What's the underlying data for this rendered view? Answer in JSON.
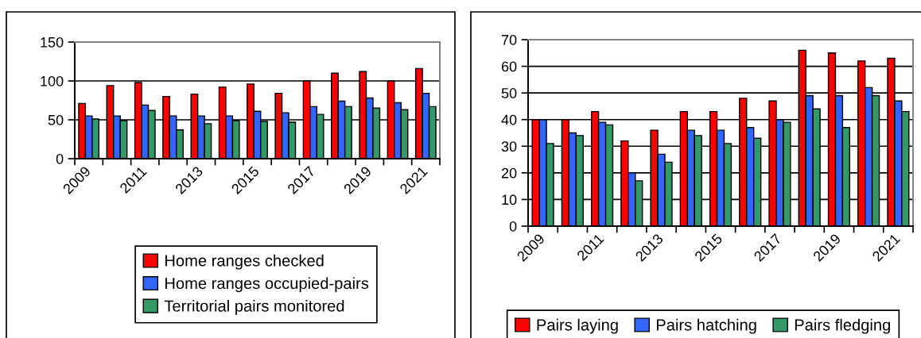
{
  "chart_data": [
    {
      "type": "bar",
      "categories": [
        "2009",
        null,
        "2011",
        null,
        "2013",
        null,
        "2015",
        null,
        "2017",
        null,
        "2019",
        null,
        "2021"
      ],
      "series": [
        {
          "name": "Home ranges checked",
          "color": "#ff0000",
          "values": [
            71,
            94,
            98,
            80,
            83,
            92,
            96,
            84,
            100,
            110,
            112,
            100,
            116
          ]
        },
        {
          "name": "Home ranges occupied-pairs",
          "color": "#3366ff",
          "values": [
            55,
            55,
            69,
            55,
            55,
            55,
            61,
            59,
            67,
            74,
            78,
            72,
            84
          ]
        },
        {
          "name": "Territorial pairs monitored",
          "color": "#339966",
          "values": [
            51,
            49,
            62,
            37,
            45,
            49,
            48,
            47,
            57,
            67,
            65,
            63,
            67
          ]
        }
      ],
      "ylim": [
        0,
        150
      ],
      "yticks": [
        0,
        50,
        100,
        150
      ],
      "grid": "y",
      "legend": "bottom"
    },
    {
      "type": "bar",
      "categories": [
        "2009",
        null,
        "2011",
        null,
        "2013",
        null,
        "2015",
        null,
        "2017",
        null,
        "2019",
        null,
        "2021"
      ],
      "series": [
        {
          "name": "Pairs laying",
          "color": "#ff0000",
          "values": [
            40,
            40,
            43,
            32,
            36,
            43,
            43,
            48,
            47,
            66,
            65,
            62,
            63
          ]
        },
        {
          "name": "Pairs hatching",
          "color": "#3366ff",
          "values": [
            40,
            35,
            39,
            20,
            27,
            36,
            36,
            37,
            40,
            49,
            49,
            52,
            47
          ]
        },
        {
          "name": "Pairs fledging",
          "color": "#339966",
          "values": [
            31,
            34,
            38,
            17,
            24,
            34,
            31,
            33,
            39,
            44,
            37,
            49,
            43
          ]
        }
      ],
      "ylim": [
        0,
        70
      ],
      "yticks": [
        0,
        10,
        20,
        30,
        40,
        50,
        60,
        70
      ],
      "grid": "y",
      "legend": "bottom"
    }
  ]
}
